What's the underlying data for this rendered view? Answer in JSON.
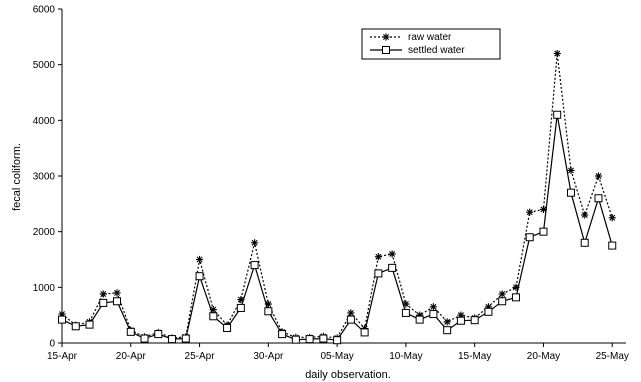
{
  "chart_data": {
    "type": "line",
    "title": "",
    "xlabel": "daily observation.",
    "ylabel": "fecal coliform.",
    "ylim": [
      0,
      6000
    ],
    "yticks": [
      0,
      1000,
      2000,
      3000,
      4000,
      5000,
      6000
    ],
    "xlim": [
      "15-Apr",
      "26-May"
    ],
    "xticks": [
      "15-Apr",
      "20-Apr",
      "25-Apr",
      "30-Apr",
      "05-May",
      "10-May",
      "15-May",
      "20-May",
      "25-May"
    ],
    "grid": false,
    "legend_position": "top-right",
    "x": [
      "15-Apr",
      "16-Apr",
      "17-Apr",
      "18-Apr",
      "19-Apr",
      "20-Apr",
      "21-Apr",
      "22-Apr",
      "23-Apr",
      "24-Apr",
      "25-Apr",
      "26-Apr",
      "27-Apr",
      "28-Apr",
      "29-Apr",
      "30-Apr",
      "01-May",
      "02-May",
      "03-May",
      "04-May",
      "05-May",
      "06-May",
      "07-May",
      "08-May",
      "09-May",
      "10-May",
      "11-May",
      "12-May",
      "13-May",
      "14-May",
      "15-May",
      "16-May",
      "17-May",
      "18-May",
      "19-May",
      "20-May",
      "21-May",
      "22-May",
      "23-May",
      "24-May",
      "25-May"
    ],
    "series": [
      {
        "name": "raw water",
        "style": "dotted",
        "marker": "star",
        "values": [
          520,
          320,
          380,
          880,
          900,
          230,
          110,
          190,
          90,
          110,
          1500,
          600,
          320,
          780,
          1800,
          700,
          200,
          100,
          100,
          120,
          90,
          540,
          260,
          1550,
          1600,
          700,
          500,
          650,
          380,
          500,
          450,
          650,
          880,
          1000,
          2350,
          2400,
          5200,
          3100,
          2300,
          3000,
          2250
        ]
      },
      {
        "name": "settled water",
        "style": "solid",
        "marker": "square",
        "values": [
          420,
          300,
          330,
          720,
          750,
          200,
          80,
          160,
          70,
          80,
          1200,
          480,
          270,
          630,
          1400,
          570,
          160,
          60,
          70,
          80,
          50,
          420,
          190,
          1250,
          1350,
          540,
          420,
          520,
          230,
          400,
          410,
          560,
          750,
          820,
          1900,
          2000,
          4100,
          2700,
          1800,
          2600,
          1750
        ]
      }
    ]
  }
}
